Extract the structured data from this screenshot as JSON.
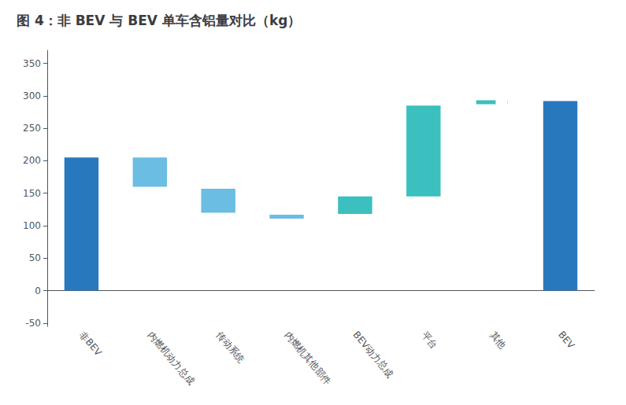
{
  "chart_data": {
    "type": "bar",
    "title": "图 4：非 BEV 与 BEV 单车含铝量对比（kg）",
    "categories": [
      "非BEV",
      "内燃机动力总成",
      "传动系统",
      "内燃机其他部件",
      "BEV动力总成",
      "平台",
      "其他",
      "BEV"
    ],
    "series": [
      {
        "type": "bar",
        "values": [
          [
            0,
            205
          ],
          [
            160,
            205
          ],
          [
            120,
            157
          ],
          [
            111,
            117
          ],
          [
            118,
            145
          ],
          [
            145,
            285
          ],
          null,
          [
            0,
            292
          ]
        ],
        "colors": [
          "#2878BE",
          "#6BBDE3",
          "#6BBDE3",
          "#6BBDE3",
          "#3BBFBF",
          "#3BBFBF",
          null,
          "#2878BE"
        ]
      },
      {
        "type": "line",
        "line_style": "dashed",
        "values": [
          null,
          null,
          null,
          null,
          null,
          null,
          [
            287,
            293
          ],
          null
        ],
        "color": "#3BBFBF"
      }
    ],
    "ylim": [
      -55,
      370
    ],
    "yticks": [
      -50,
      0,
      50,
      100,
      150,
      200,
      250,
      300,
      350
    ],
    "grid": false
  }
}
